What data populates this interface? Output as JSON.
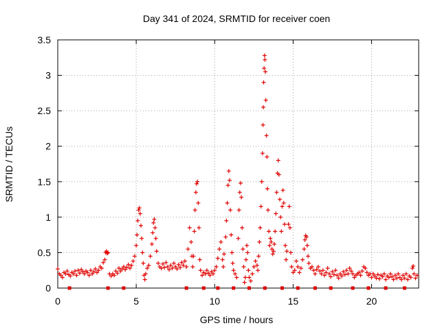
{
  "chart_data": {
    "type": "scatter",
    "title": "Day 341 of 2024, SRMTID for receiver coen",
    "xlabel": "GPS time / hours",
    "ylabel": "SRMTID / TECUs",
    "xlim": [
      0,
      23
    ],
    "ylim": [
      0,
      3.5
    ],
    "x_ticks": [
      0,
      5,
      10,
      15,
      20
    ],
    "x_tick_labels": [
      "0",
      "5",
      "10",
      "15",
      "20"
    ],
    "y_ticks": [
      0,
      0.5,
      1,
      1.5,
      2,
      2.5,
      3,
      3.5
    ],
    "y_tick_labels": [
      "0",
      "0.5",
      "1",
      "1.5",
      "2",
      "2.5",
      "3",
      "3.5"
    ],
    "grid": true,
    "marker": "plus",
    "color": "#e00000",
    "series": [
      {
        "name": "SRMTID",
        "points": [
          [
            0.0,
            0.27
          ],
          [
            0.1,
            0.2
          ],
          [
            0.2,
            0.18
          ],
          [
            0.3,
            0.15
          ],
          [
            0.4,
            0.22
          ],
          [
            0.5,
            0.2
          ],
          [
            0.6,
            0.24
          ],
          [
            0.7,
            0.19
          ],
          [
            0.8,
            0.17
          ],
          [
            0.9,
            0.22
          ],
          [
            1.0,
            0.2
          ],
          [
            1.1,
            0.24
          ],
          [
            1.2,
            0.18
          ],
          [
            1.3,
            0.25
          ],
          [
            1.4,
            0.21
          ],
          [
            1.5,
            0.26
          ],
          [
            1.6,
            0.23
          ],
          [
            1.7,
            0.2
          ],
          [
            1.8,
            0.24
          ],
          [
            1.9,
            0.22
          ],
          [
            2.0,
            0.18
          ],
          [
            2.1,
            0.25
          ],
          [
            2.2,
            0.2
          ],
          [
            2.3,
            0.23
          ],
          [
            2.4,
            0.27
          ],
          [
            2.5,
            0.22
          ],
          [
            2.6,
            0.25
          ],
          [
            2.7,
            0.3
          ],
          [
            2.8,
            0.28
          ],
          [
            2.9,
            0.36
          ],
          [
            3.0,
            0.4
          ],
          [
            3.05,
            0.5
          ],
          [
            3.1,
            0.52
          ],
          [
            3.15,
            0.49
          ],
          [
            3.2,
            0.5
          ],
          [
            3.3,
            0.2
          ],
          [
            3.4,
            0.17
          ],
          [
            3.5,
            0.2
          ],
          [
            3.6,
            0.18
          ],
          [
            3.7,
            0.24
          ],
          [
            3.8,
            0.21
          ],
          [
            3.9,
            0.28
          ],
          [
            4.0,
            0.24
          ],
          [
            4.1,
            0.27
          ],
          [
            4.2,
            0.3
          ],
          [
            4.3,
            0.26
          ],
          [
            4.4,
            0.29
          ],
          [
            4.5,
            0.33
          ],
          [
            4.6,
            0.28
          ],
          [
            4.7,
            0.32
          ],
          [
            4.8,
            0.38
          ],
          [
            4.9,
            0.45
          ],
          [
            5.0,
            0.6
          ],
          [
            5.05,
            0.75
          ],
          [
            5.1,
            0.95
          ],
          [
            5.15,
            1.1
          ],
          [
            5.2,
            1.13
          ],
          [
            5.25,
            1.05
          ],
          [
            5.3,
            0.88
          ],
          [
            5.35,
            0.7
          ],
          [
            5.4,
            0.5
          ],
          [
            5.45,
            0.35
          ],
          [
            5.5,
            0.18
          ],
          [
            5.55,
            0.12
          ],
          [
            5.6,
            0.2
          ],
          [
            5.7,
            0.28
          ],
          [
            5.8,
            0.32
          ],
          [
            5.9,
            0.45
          ],
          [
            6.0,
            0.62
          ],
          [
            6.05,
            0.78
          ],
          [
            6.1,
            0.92
          ],
          [
            6.15,
            0.97
          ],
          [
            6.2,
            0.85
          ],
          [
            6.25,
            0.7
          ],
          [
            6.3,
            0.52
          ],
          [
            6.4,
            0.35
          ],
          [
            6.5,
            0.3
          ],
          [
            6.6,
            0.28
          ],
          [
            6.7,
            0.34
          ],
          [
            6.8,
            0.29
          ],
          [
            6.9,
            0.36
          ],
          [
            7.0,
            0.3
          ],
          [
            7.1,
            0.26
          ],
          [
            7.2,
            0.32
          ],
          [
            7.3,
            0.28
          ],
          [
            7.4,
            0.35
          ],
          [
            7.5,
            0.3
          ],
          [
            7.6,
            0.27
          ],
          [
            7.7,
            0.33
          ],
          [
            7.8,
            0.29
          ],
          [
            7.9,
            0.36
          ],
          [
            8.0,
            0.32
          ],
          [
            8.1,
            0.38
          ],
          [
            8.2,
            0.3
          ],
          [
            8.3,
            0.55
          ],
          [
            8.4,
            0.85
          ],
          [
            8.5,
            0.65
          ],
          [
            8.55,
            0.45
          ],
          [
            8.6,
            0.3
          ],
          [
            8.65,
            0.45
          ],
          [
            8.7,
            0.8
          ],
          [
            8.75,
            1.1
          ],
          [
            8.8,
            1.35
          ],
          [
            8.85,
            1.47
          ],
          [
            8.9,
            1.5
          ],
          [
            8.95,
            1.2
          ],
          [
            9.0,
            0.85
          ],
          [
            9.05,
            0.4
          ],
          [
            9.1,
            0.25
          ],
          [
            9.2,
            0.18
          ],
          [
            9.3,
            0.22
          ],
          [
            9.4,
            0.2
          ],
          [
            9.5,
            0.25
          ],
          [
            9.6,
            0.21
          ],
          [
            9.7,
            0.18
          ],
          [
            9.8,
            0.23
          ],
          [
            9.9,
            0.2
          ],
          [
            10.0,
            0.25
          ],
          [
            10.1,
            0.3
          ],
          [
            10.2,
            0.42
          ],
          [
            10.3,
            0.55
          ],
          [
            10.4,
            0.65
          ],
          [
            10.5,
            0.4
          ],
          [
            10.55,
            0.3
          ],
          [
            10.6,
            0.48
          ],
          [
            10.7,
            0.72
          ],
          [
            10.75,
            0.95
          ],
          [
            10.8,
            1.2
          ],
          [
            10.85,
            1.45
          ],
          [
            10.9,
            1.65
          ],
          [
            10.95,
            1.52
          ],
          [
            11.0,
            1.1
          ],
          [
            11.05,
            0.75
          ],
          [
            11.1,
            0.5
          ],
          [
            11.15,
            0.35
          ],
          [
            11.2,
            0.25
          ],
          [
            11.3,
            0.2
          ],
          [
            11.4,
            0.15
          ],
          [
            11.5,
            0.7
          ],
          [
            11.55,
            1.1
          ],
          [
            11.6,
            1.35
          ],
          [
            11.65,
            1.48
          ],
          [
            11.7,
            1.28
          ],
          [
            11.75,
            0.85
          ],
          [
            11.8,
            0.55
          ],
          [
            11.85,
            0.3
          ],
          [
            11.9,
            0.08
          ],
          [
            11.95,
            0.15
          ],
          [
            12.0,
            0.4
          ],
          [
            12.05,
            0.6
          ],
          [
            12.1,
            0.5
          ],
          [
            12.15,
            0.25
          ],
          [
            12.2,
            0.15
          ],
          [
            12.3,
            0.1
          ],
          [
            12.4,
            0.2
          ],
          [
            12.5,
            0.3
          ],
          [
            12.6,
            0.38
          ],
          [
            12.7,
            0.32
          ],
          [
            12.75,
            0.25
          ],
          [
            12.8,
            0.45
          ],
          [
            12.85,
            0.65
          ],
          [
            12.9,
            0.85
          ],
          [
            12.95,
            1.15
          ],
          [
            13.0,
            1.5
          ],
          [
            13.05,
            1.9
          ],
          [
            13.08,
            2.3
          ],
          [
            13.1,
            2.55
          ],
          [
            13.12,
            2.9
          ],
          [
            13.15,
            3.1
          ],
          [
            13.18,
            3.28
          ],
          [
            13.2,
            3.22
          ],
          [
            13.23,
            3.05
          ],
          [
            13.26,
            2.65
          ],
          [
            13.3,
            2.15
          ],
          [
            13.33,
            1.85
          ],
          [
            13.36,
            1.4
          ],
          [
            13.4,
            1.1
          ],
          [
            13.45,
            0.8
          ],
          [
            13.5,
            0.6
          ],
          [
            13.55,
            0.7
          ],
          [
            13.6,
            0.65
          ],
          [
            13.65,
            0.55
          ],
          [
            13.7,
            0.48
          ],
          [
            13.75,
            0.52
          ],
          [
            13.8,
            0.62
          ],
          [
            13.85,
            0.8
          ],
          [
            13.9,
            1.05
          ],
          [
            13.95,
            1.35
          ],
          [
            14.0,
            1.62
          ],
          [
            14.05,
            1.8
          ],
          [
            14.1,
            1.6
          ],
          [
            14.15,
            1.25
          ],
          [
            14.2,
            1.0
          ],
          [
            14.25,
            0.8
          ],
          [
            14.3,
            1.15
          ],
          [
            14.35,
            1.38
          ],
          [
            14.4,
            1.2
          ],
          [
            14.45,
            0.9
          ],
          [
            14.5,
            0.6
          ],
          [
            14.55,
            0.4
          ],
          [
            14.6,
            0.52
          ],
          [
            14.7,
            0.9
          ],
          [
            14.75,
            1.15
          ],
          [
            14.8,
            0.85
          ],
          [
            14.85,
            0.5
          ],
          [
            14.9,
            0.3
          ],
          [
            15.0,
            0.22
          ],
          [
            15.1,
            0.25
          ],
          [
            15.2,
            0.38
          ],
          [
            15.3,
            0.3
          ],
          [
            15.4,
            0.22
          ],
          [
            15.5,
            0.28
          ],
          [
            15.6,
            0.4
          ],
          [
            15.7,
            0.55
          ],
          [
            15.75,
            0.68
          ],
          [
            15.8,
            0.74
          ],
          [
            15.85,
            0.72
          ],
          [
            15.9,
            0.6
          ],
          [
            15.95,
            0.45
          ],
          [
            16.0,
            0.35
          ],
          [
            16.1,
            0.28
          ],
          [
            16.2,
            0.3
          ],
          [
            16.3,
            0.25
          ],
          [
            16.4,
            0.2
          ],
          [
            16.5,
            0.26
          ],
          [
            16.6,
            0.3
          ],
          [
            16.7,
            0.24
          ],
          [
            16.8,
            0.2
          ],
          [
            16.9,
            0.25
          ],
          [
            17.0,
            0.18
          ],
          [
            17.1,
            0.22
          ],
          [
            17.2,
            0.28
          ],
          [
            17.3,
            0.2
          ],
          [
            17.4,
            0.16
          ],
          [
            17.5,
            0.23
          ],
          [
            17.6,
            0.19
          ],
          [
            17.7,
            0.25
          ],
          [
            17.8,
            0.18
          ],
          [
            17.9,
            0.14
          ],
          [
            18.0,
            0.2
          ],
          [
            18.1,
            0.17
          ],
          [
            18.2,
            0.23
          ],
          [
            18.3,
            0.19
          ],
          [
            18.4,
            0.25
          ],
          [
            18.5,
            0.2
          ],
          [
            18.6,
            0.28
          ],
          [
            18.7,
            0.24
          ],
          [
            18.8,
            0.2
          ],
          [
            18.9,
            0.15
          ],
          [
            19.0,
            0.18
          ],
          [
            19.1,
            0.2
          ],
          [
            19.2,
            0.22
          ],
          [
            19.3,
            0.18
          ],
          [
            19.4,
            0.24
          ],
          [
            19.5,
            0.3
          ],
          [
            19.6,
            0.28
          ],
          [
            19.7,
            0.22
          ],
          [
            19.8,
            0.18
          ],
          [
            19.9,
            0.2
          ],
          [
            20.0,
            0.15
          ],
          [
            20.1,
            0.2
          ],
          [
            20.2,
            0.17
          ],
          [
            20.3,
            0.14
          ],
          [
            20.4,
            0.19
          ],
          [
            20.5,
            0.13
          ],
          [
            20.6,
            0.18
          ],
          [
            20.7,
            0.16
          ],
          [
            20.8,
            0.2
          ],
          [
            20.9,
            0.12
          ],
          [
            21.0,
            0.17
          ],
          [
            21.1,
            0.15
          ],
          [
            21.2,
            0.2
          ],
          [
            21.3,
            0.16
          ],
          [
            21.4,
            0.12
          ],
          [
            21.5,
            0.18
          ],
          [
            21.6,
            0.14
          ],
          [
            21.7,
            0.2
          ],
          [
            21.8,
            0.15
          ],
          [
            21.9,
            0.12
          ],
          [
            22.0,
            0.18
          ],
          [
            22.1,
            0.14
          ],
          [
            22.2,
            0.2
          ],
          [
            22.3,
            0.12
          ],
          [
            22.4,
            0.17
          ],
          [
            22.5,
            0.15
          ],
          [
            22.6,
            0.28
          ],
          [
            22.65,
            0.31
          ],
          [
            22.7,
            0.2
          ],
          [
            22.8,
            0.14
          ],
          [
            22.9,
            0.18
          ]
        ]
      }
    ],
    "baseline_markers": {
      "name": "data gap markers",
      "y": 0,
      "x": [
        0.75,
        3.2,
        4.2,
        8.2,
        9.3,
        10.2,
        11.2,
        12.2,
        13.2,
        14.3,
        15.3,
        16.4,
        17.4,
        18.8,
        19.8,
        20.9,
        22.1
      ]
    }
  }
}
